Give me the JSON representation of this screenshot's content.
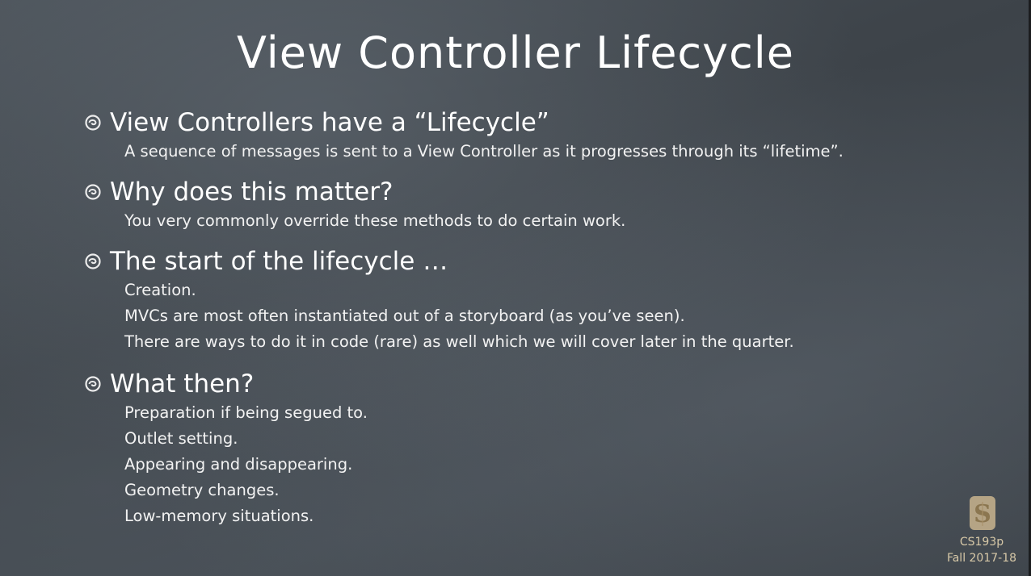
{
  "slide": {
    "title": "View Controller Lifecycle",
    "sections": [
      {
        "heading": "View Controllers have a “Lifecycle”",
        "lines": [
          "A sequence of messages is sent to a View Controller as it progresses through its “lifetime”."
        ]
      },
      {
        "heading": "Why does this matter?",
        "lines": [
          "You very commonly override these methods to do certain work."
        ]
      },
      {
        "heading": "The start of the lifecycle …",
        "lines": [
          "Creation.",
          "MVCs are most often instantiated out of a storyboard (as you’ve seen).",
          "There are ways to do it in code (rare) as well which we will cover later in the quarter."
        ]
      },
      {
        "heading": "What then?",
        "lines": [
          "Preparation if being segued to.",
          "Outlet setting.",
          "Appearing and disappearing.",
          "Geometry changes.",
          "Low-memory situations."
        ]
      }
    ],
    "footer": {
      "logo_icon": "stanford-s-logo-icon",
      "course": "CS193p",
      "term": "Fall 2017-18"
    }
  }
}
